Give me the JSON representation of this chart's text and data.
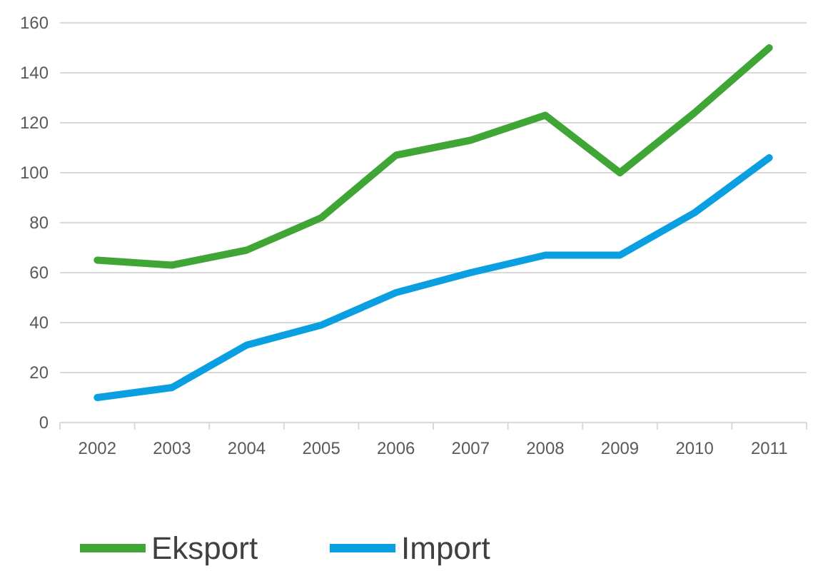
{
  "chart_data": {
    "type": "line",
    "categories": [
      "2002",
      "2003",
      "2004",
      "2005",
      "2006",
      "2007",
      "2008",
      "2009",
      "2010",
      "2011"
    ],
    "series": [
      {
        "name": "Eksport",
        "color": "#3fa535",
        "values": [
          65,
          63,
          69,
          82,
          107,
          113,
          123,
          100,
          124,
          150
        ]
      },
      {
        "name": "Import",
        "color": "#0a9fe0",
        "values": [
          10,
          14,
          31,
          39,
          52,
          60,
          67,
          67,
          84,
          106
        ]
      }
    ],
    "ylim": [
      0,
      160
    ],
    "yticks": [
      0,
      20,
      40,
      60,
      80,
      100,
      120,
      140,
      160
    ],
    "grid": "y",
    "legend": "bottom left",
    "marker": "none",
    "line_style": "solid"
  }
}
